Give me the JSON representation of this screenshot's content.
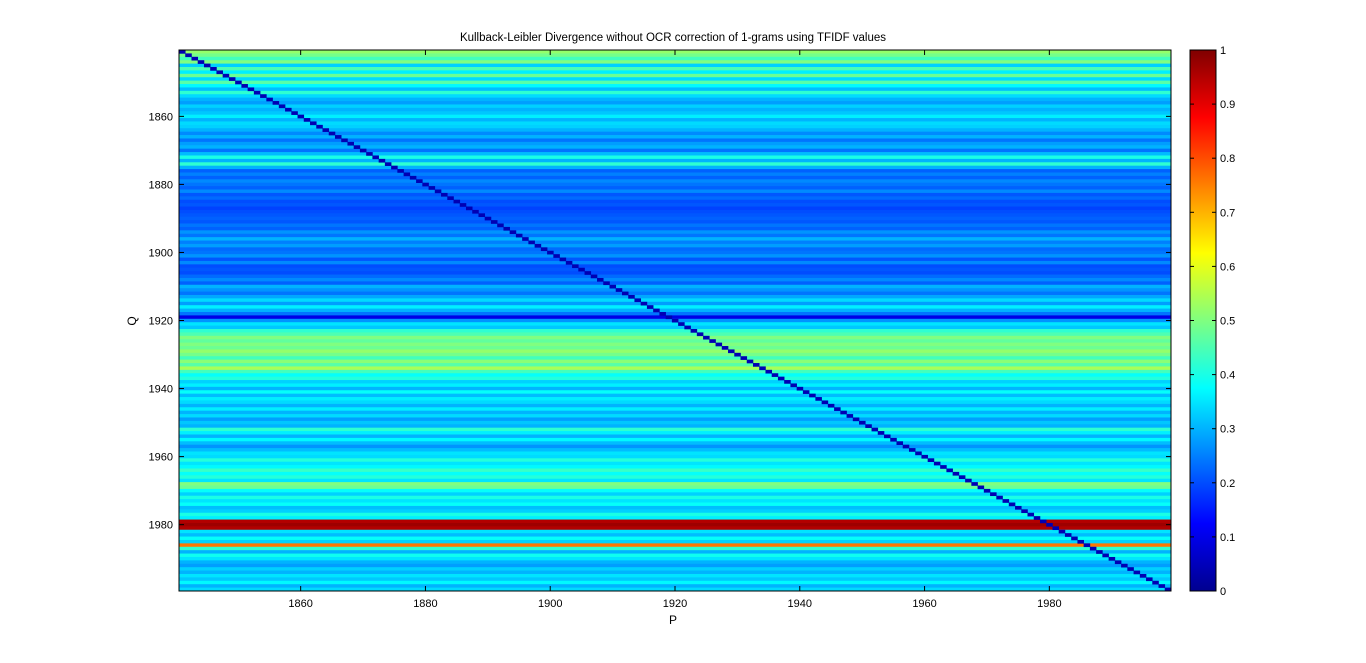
{
  "chart_data": {
    "type": "heatmap",
    "title": "Kullback-Leibler Divergence without OCR correction of 1-grams using TFIDF values",
    "xlabel": "P",
    "ylabel": "Q",
    "x_range": [
      1841,
      1999
    ],
    "y_range": [
      1841,
      1999
    ],
    "x_ticks": [
      "1860",
      "1880",
      "1900",
      "1920",
      "1940",
      "1960",
      "1980"
    ],
    "y_ticks": [
      "1860",
      "1880",
      "1900",
      "1920",
      "1940",
      "1960",
      "1980"
    ],
    "colorbar": {
      "min": 0,
      "max": 1,
      "ticks": [
        "0",
        "0.1",
        "0.2",
        "0.3",
        "0.4",
        "0.5",
        "0.6",
        "0.7",
        "0.8",
        "0.9",
        "1"
      ],
      "colormap": "jet"
    },
    "diagonal_value": 0.05,
    "row_levels": {
      "note": "approximate divergence level per Q-year row (values along P are roughly constant)",
      "years": [
        1841,
        1842,
        1843,
        1844,
        1845,
        1846,
        1847,
        1848,
        1849,
        1850,
        1851,
        1852,
        1853,
        1854,
        1855,
        1856,
        1857,
        1858,
        1859,
        1860,
        1861,
        1862,
        1863,
        1864,
        1865,
        1866,
        1867,
        1868,
        1869,
        1870,
        1871,
        1872,
        1873,
        1874,
        1875,
        1876,
        1877,
        1878,
        1879,
        1880,
        1881,
        1882,
        1883,
        1884,
        1885,
        1886,
        1887,
        1888,
        1889,
        1890,
        1891,
        1892,
        1893,
        1894,
        1895,
        1896,
        1897,
        1898,
        1899,
        1900,
        1901,
        1902,
        1903,
        1904,
        1905,
        1906,
        1907,
        1908,
        1909,
        1910,
        1911,
        1912,
        1913,
        1914,
        1915,
        1916,
        1917,
        1918,
        1919,
        1920,
        1921,
        1922,
        1923,
        1924,
        1925,
        1926,
        1927,
        1928,
        1929,
        1930,
        1931,
        1932,
        1933,
        1934,
        1935,
        1936,
        1937,
        1938,
        1939,
        1940,
        1941,
        1942,
        1943,
        1944,
        1945,
        1946,
        1947,
        1948,
        1949,
        1950,
        1951,
        1952,
        1953,
        1954,
        1955,
        1956,
        1957,
        1958,
        1959,
        1960,
        1961,
        1962,
        1963,
        1964,
        1965,
        1966,
        1967,
        1968,
        1969,
        1970,
        1971,
        1972,
        1973,
        1974,
        1975,
        1976,
        1977,
        1978,
        1979,
        1980,
        1981,
        1982,
        1983,
        1984,
        1985,
        1986,
        1987,
        1988,
        1989,
        1990,
        1991,
        1992,
        1993,
        1994,
        1995,
        1996,
        1997,
        1998,
        1999
      ],
      "values": [
        0.52,
        0.49,
        0.44,
        0.5,
        0.33,
        0.45,
        0.36,
        0.48,
        0.34,
        0.46,
        0.37,
        0.31,
        0.42,
        0.34,
        0.3,
        0.28,
        0.33,
        0.3,
        0.32,
        0.36,
        0.3,
        0.34,
        0.33,
        0.3,
        0.26,
        0.3,
        0.24,
        0.28,
        0.3,
        0.24,
        0.31,
        0.4,
        0.3,
        0.42,
        0.3,
        0.22,
        0.25,
        0.22,
        0.26,
        0.24,
        0.22,
        0.26,
        0.21,
        0.23,
        0.2,
        0.21,
        0.19,
        0.2,
        0.21,
        0.22,
        0.21,
        0.24,
        0.22,
        0.27,
        0.24,
        0.3,
        0.25,
        0.28,
        0.23,
        0.24,
        0.27,
        0.21,
        0.26,
        0.2,
        0.21,
        0.2,
        0.23,
        0.26,
        0.22,
        0.3,
        0.27,
        0.24,
        0.29,
        0.34,
        0.28,
        0.36,
        0.3,
        0.24,
        0.1,
        0.27,
        0.35,
        0.32,
        0.42,
        0.45,
        0.5,
        0.47,
        0.5,
        0.48,
        0.52,
        0.49,
        0.44,
        0.51,
        0.46,
        0.54,
        0.44,
        0.38,
        0.41,
        0.33,
        0.36,
        0.3,
        0.38,
        0.31,
        0.36,
        0.34,
        0.3,
        0.36,
        0.3,
        0.34,
        0.28,
        0.32,
        0.3,
        0.42,
        0.36,
        0.3,
        0.37,
        0.31,
        0.27,
        0.31,
        0.35,
        0.34,
        0.41,
        0.35,
        0.37,
        0.43,
        0.38,
        0.41,
        0.35,
        0.5,
        0.48,
        0.38,
        0.33,
        0.4,
        0.35,
        0.38,
        0.31,
        0.33,
        0.4,
        0.36,
        0.95,
        0.97,
        0.95,
        0.35,
        0.31,
        0.38,
        0.33,
        0.76,
        0.42,
        0.3,
        0.39,
        0.35,
        0.3,
        0.28,
        0.33,
        0.3,
        0.35,
        0.32,
        0.37,
        0.3,
        0.34
      ]
    }
  }
}
